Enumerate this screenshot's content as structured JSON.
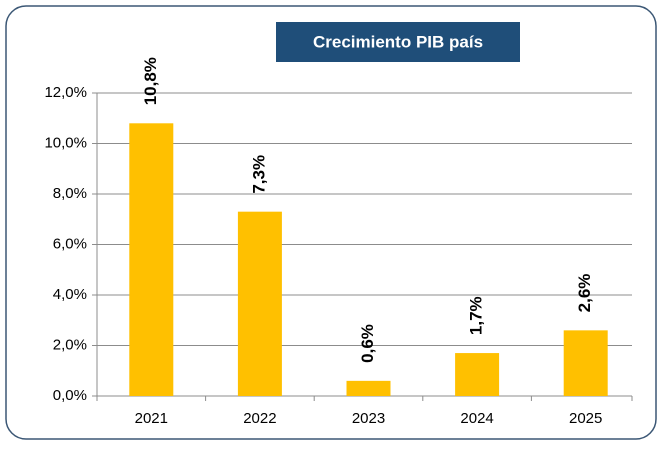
{
  "chart_data": {
    "type": "bar",
    "title": "Crecimiento PIB país",
    "categories": [
      "2021",
      "2022",
      "2023",
      "2024",
      "2025"
    ],
    "values": [
      10.8,
      7.3,
      0.6,
      1.7,
      2.6
    ],
    "value_labels": [
      "10,8%",
      "7,3%",
      "0,6%",
      "1,7%",
      "2,6%"
    ],
    "color": "#ffc000",
    "ylim": [
      0,
      12
    ],
    "yticks": [
      {
        "value": 0,
        "label": "0,0%"
      },
      {
        "value": 2,
        "label": "2,0%"
      },
      {
        "value": 4,
        "label": "4,0%"
      },
      {
        "value": 6,
        "label": "6,0%"
      },
      {
        "value": 8,
        "label": "8,0%"
      },
      {
        "value": 10,
        "label": "10,0%"
      },
      {
        "value": 12,
        "label": "12,0%"
      }
    ],
    "grid": true
  }
}
